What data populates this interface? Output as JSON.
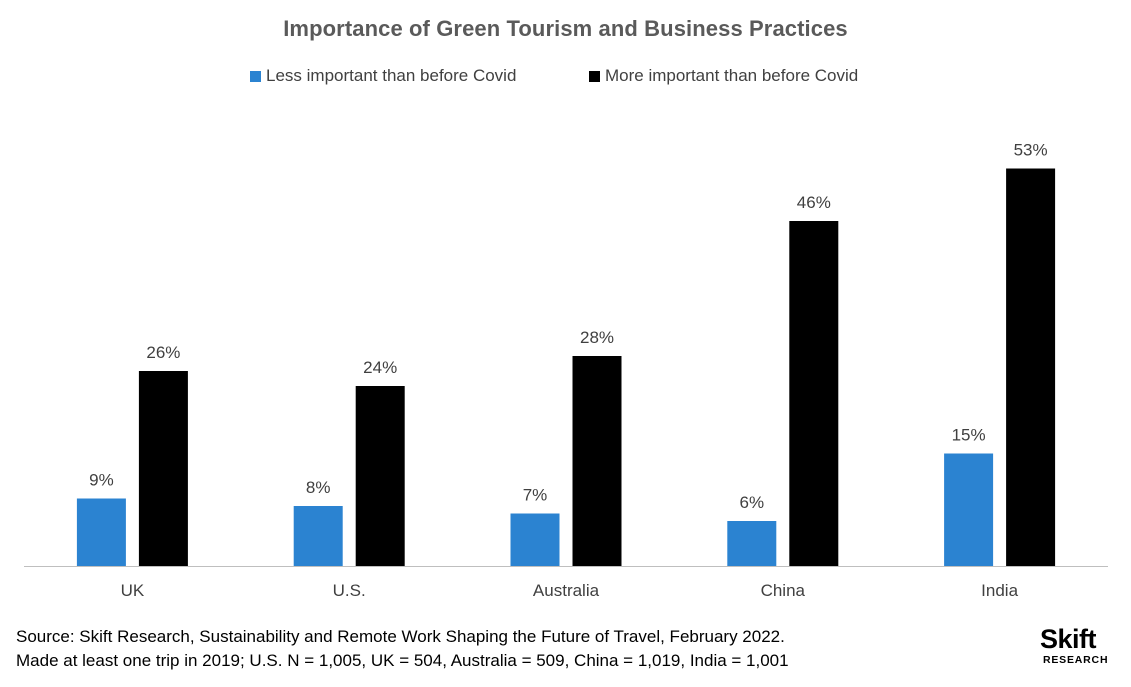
{
  "chart_data": {
    "type": "bar",
    "title": "Importance of Green Tourism and Business Practices",
    "categories": [
      "UK",
      "U.S.",
      "Australia",
      "China",
      "India"
    ],
    "series": [
      {
        "name": "Less important than before Covid",
        "values": [
          9,
          8,
          7,
          6,
          15
        ],
        "labels": [
          "9%",
          "8%",
          "7%",
          "6%",
          "15%"
        ],
        "color": "#2b83d1"
      },
      {
        "name": "More important than before Covid",
        "values": [
          26,
          24,
          28,
          46,
          53
        ],
        "labels": [
          "26%",
          "24%",
          "28%",
          "46%",
          "53%"
        ],
        "color": "#000000"
      }
    ],
    "xlabel": "",
    "ylabel": "",
    "ylim": [
      0,
      60
    ],
    "grid": false,
    "legend_position": "top-center"
  },
  "footnote": {
    "line1": "Source: Skift Research, Sustainability and Remote Work Shaping the Future of Travel, February 2022.",
    "line2": "Made at least one trip in 2019; U.S. N = 1,005, UK = 504, Australia = 509, China = 1,019, India = 1,001"
  },
  "logo": {
    "word": "Skift",
    "sub": "RESEARCH"
  }
}
